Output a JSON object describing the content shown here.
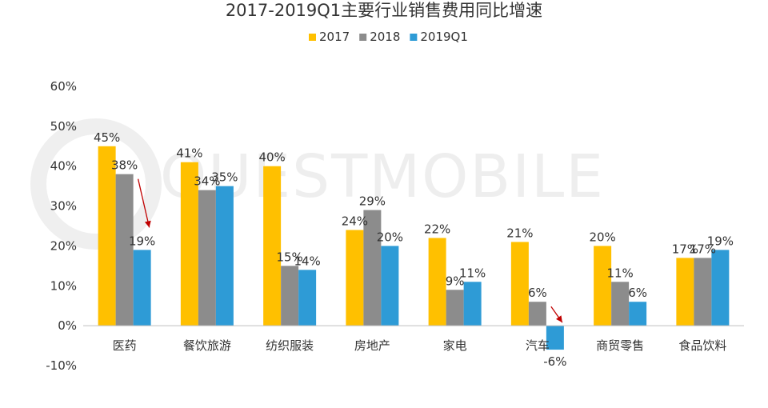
{
  "chart_data": {
    "type": "bar",
    "title": "2017-2019Q1主要行业销售费用同比增速",
    "categories": [
      "医药",
      "餐饮旅游",
      "纺织服装",
      "房地产",
      "家电",
      "汽车",
      "商贸零售",
      "食品饮料"
    ],
    "series": [
      {
        "name": "2017",
        "values": [
          45,
          41,
          40,
          24,
          22,
          21,
          20,
          17
        ],
        "color": "#FFC000"
      },
      {
        "name": "2018",
        "values": [
          38,
          34,
          15,
          29,
          9,
          6,
          11,
          17
        ],
        "color": "#8C8C8C"
      },
      {
        "name": "2019Q1",
        "values": [
          19,
          35,
          14,
          20,
          11,
          -6,
          6,
          19
        ],
        "color": "#2E9BD6"
      }
    ],
    "ylim": [
      -10,
      60
    ],
    "yticks": [
      60,
      50,
      40,
      30,
      20,
      10,
      0,
      -10
    ],
    "ytick_labels": [
      "60%",
      "50%",
      "40%",
      "30%",
      "20%",
      "10%",
      "0%",
      "-10%"
    ],
    "value_suffix": "%",
    "legend_position": "top-center",
    "grid": false,
    "annotations": [
      {
        "type": "arrow",
        "category": "医药",
        "color": "#C00000"
      },
      {
        "type": "arrow",
        "category": "汽车",
        "color": "#C00000"
      }
    ]
  },
  "watermark": {
    "text": "QUESTMOBILE"
  }
}
